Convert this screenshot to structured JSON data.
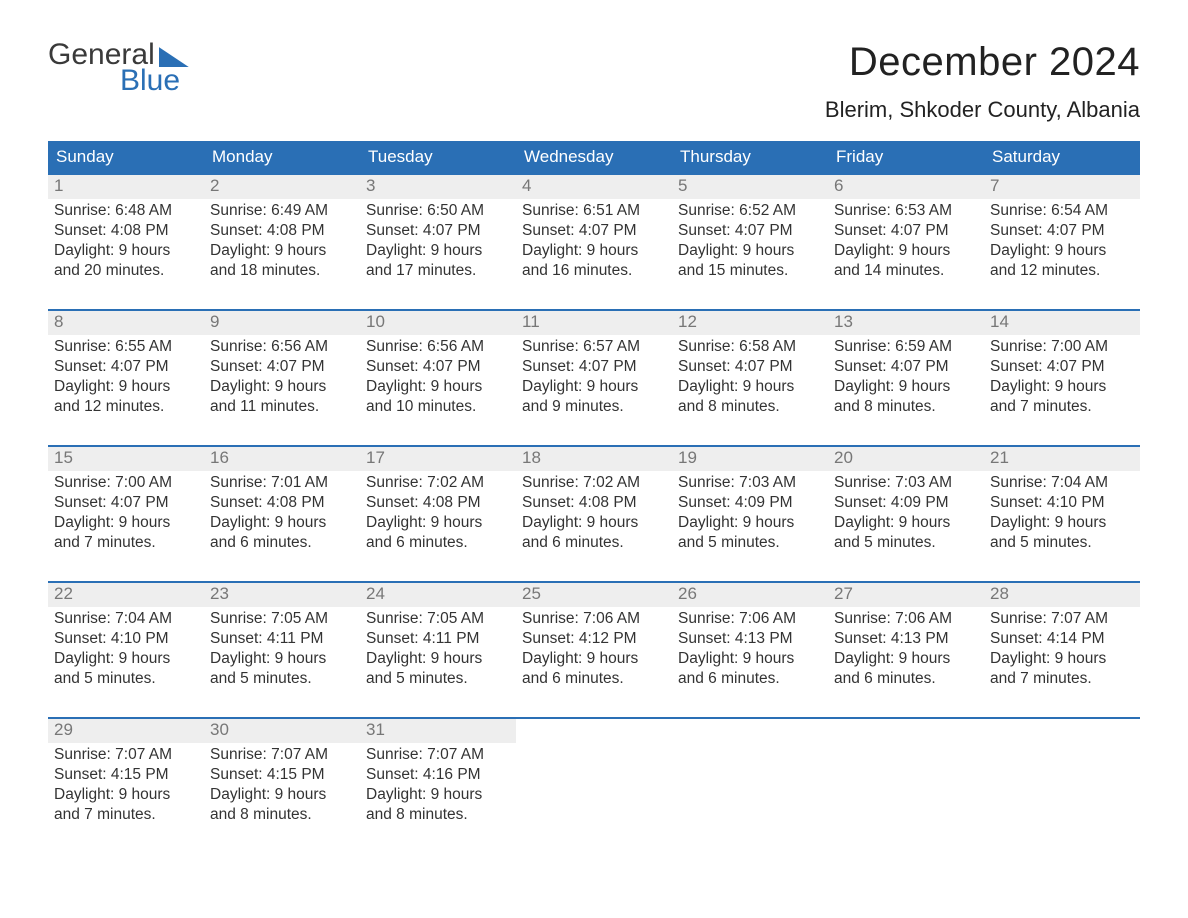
{
  "logo": {
    "word1": "General",
    "word2": "Blue"
  },
  "title": "December 2024",
  "location": "Blerim, Shkoder County, Albania",
  "colors": {
    "brand_blue": "#2a6fb5",
    "header_text": "#ffffff",
    "daynum_bg": "#eeeeee",
    "daynum_text": "#777777",
    "body_text": "#333333",
    "bg": "#ffffff"
  },
  "day_names": [
    "Sunday",
    "Monday",
    "Tuesday",
    "Wednesday",
    "Thursday",
    "Friday",
    "Saturday"
  ],
  "weeks": [
    [
      {
        "n": "1",
        "sr": "6:48 AM",
        "ss": "4:08 PM",
        "dl": "9 hours and 20 minutes."
      },
      {
        "n": "2",
        "sr": "6:49 AM",
        "ss": "4:08 PM",
        "dl": "9 hours and 18 minutes."
      },
      {
        "n": "3",
        "sr": "6:50 AM",
        "ss": "4:07 PM",
        "dl": "9 hours and 17 minutes."
      },
      {
        "n": "4",
        "sr": "6:51 AM",
        "ss": "4:07 PM",
        "dl": "9 hours and 16 minutes."
      },
      {
        "n": "5",
        "sr": "6:52 AM",
        "ss": "4:07 PM",
        "dl": "9 hours and 15 minutes."
      },
      {
        "n": "6",
        "sr": "6:53 AM",
        "ss": "4:07 PM",
        "dl": "9 hours and 14 minutes."
      },
      {
        "n": "7",
        "sr": "6:54 AM",
        "ss": "4:07 PM",
        "dl": "9 hours and 12 minutes."
      }
    ],
    [
      {
        "n": "8",
        "sr": "6:55 AM",
        "ss": "4:07 PM",
        "dl": "9 hours and 12 minutes."
      },
      {
        "n": "9",
        "sr": "6:56 AM",
        "ss": "4:07 PM",
        "dl": "9 hours and 11 minutes."
      },
      {
        "n": "10",
        "sr": "6:56 AM",
        "ss": "4:07 PM",
        "dl": "9 hours and 10 minutes."
      },
      {
        "n": "11",
        "sr": "6:57 AM",
        "ss": "4:07 PM",
        "dl": "9 hours and 9 minutes."
      },
      {
        "n": "12",
        "sr": "6:58 AM",
        "ss": "4:07 PM",
        "dl": "9 hours and 8 minutes."
      },
      {
        "n": "13",
        "sr": "6:59 AM",
        "ss": "4:07 PM",
        "dl": "9 hours and 8 minutes."
      },
      {
        "n": "14",
        "sr": "7:00 AM",
        "ss": "4:07 PM",
        "dl": "9 hours and 7 minutes."
      }
    ],
    [
      {
        "n": "15",
        "sr": "7:00 AM",
        "ss": "4:07 PM",
        "dl": "9 hours and 7 minutes."
      },
      {
        "n": "16",
        "sr": "7:01 AM",
        "ss": "4:08 PM",
        "dl": "9 hours and 6 minutes."
      },
      {
        "n": "17",
        "sr": "7:02 AM",
        "ss": "4:08 PM",
        "dl": "9 hours and 6 minutes."
      },
      {
        "n": "18",
        "sr": "7:02 AM",
        "ss": "4:08 PM",
        "dl": "9 hours and 6 minutes."
      },
      {
        "n": "19",
        "sr": "7:03 AM",
        "ss": "4:09 PM",
        "dl": "9 hours and 5 minutes."
      },
      {
        "n": "20",
        "sr": "7:03 AM",
        "ss": "4:09 PM",
        "dl": "9 hours and 5 minutes."
      },
      {
        "n": "21",
        "sr": "7:04 AM",
        "ss": "4:10 PM",
        "dl": "9 hours and 5 minutes."
      }
    ],
    [
      {
        "n": "22",
        "sr": "7:04 AM",
        "ss": "4:10 PM",
        "dl": "9 hours and 5 minutes."
      },
      {
        "n": "23",
        "sr": "7:05 AM",
        "ss": "4:11 PM",
        "dl": "9 hours and 5 minutes."
      },
      {
        "n": "24",
        "sr": "7:05 AM",
        "ss": "4:11 PM",
        "dl": "9 hours and 5 minutes."
      },
      {
        "n": "25",
        "sr": "7:06 AM",
        "ss": "4:12 PM",
        "dl": "9 hours and 6 minutes."
      },
      {
        "n": "26",
        "sr": "7:06 AM",
        "ss": "4:13 PM",
        "dl": "9 hours and 6 minutes."
      },
      {
        "n": "27",
        "sr": "7:06 AM",
        "ss": "4:13 PM",
        "dl": "9 hours and 6 minutes."
      },
      {
        "n": "28",
        "sr": "7:07 AM",
        "ss": "4:14 PM",
        "dl": "9 hours and 7 minutes."
      }
    ],
    [
      {
        "n": "29",
        "sr": "7:07 AM",
        "ss": "4:15 PM",
        "dl": "9 hours and 7 minutes."
      },
      {
        "n": "30",
        "sr": "7:07 AM",
        "ss": "4:15 PM",
        "dl": "9 hours and 8 minutes."
      },
      {
        "n": "31",
        "sr": "7:07 AM",
        "ss": "4:16 PM",
        "dl": "9 hours and 8 minutes."
      },
      null,
      null,
      null,
      null
    ]
  ],
  "labels": {
    "sunrise": "Sunrise:",
    "sunset": "Sunset:",
    "daylight": "Daylight:"
  }
}
